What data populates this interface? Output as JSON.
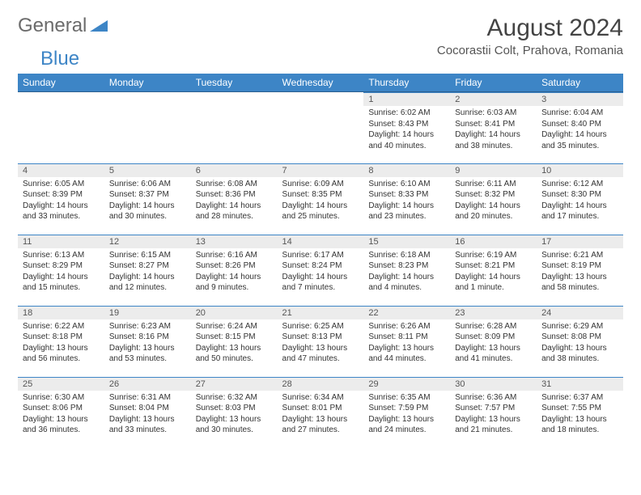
{
  "logo": {
    "part1": "General",
    "part2": "Blue"
  },
  "title": "August 2024",
  "subtitle": "Cocorastii Colt, Prahova, Romania",
  "colors": {
    "accent": "#3d85c6",
    "dayband": "#ececec",
    "text": "#333333"
  },
  "weekdays": [
    "Sunday",
    "Monday",
    "Tuesday",
    "Wednesday",
    "Thursday",
    "Friday",
    "Saturday"
  ],
  "first_weekday_index": 4,
  "days": [
    {
      "n": 1,
      "sr": "6:02 AM",
      "ss": "8:43 PM",
      "dl": "14 hours and 40 minutes."
    },
    {
      "n": 2,
      "sr": "6:03 AM",
      "ss": "8:41 PM",
      "dl": "14 hours and 38 minutes."
    },
    {
      "n": 3,
      "sr": "6:04 AM",
      "ss": "8:40 PM",
      "dl": "14 hours and 35 minutes."
    },
    {
      "n": 4,
      "sr": "6:05 AM",
      "ss": "8:39 PM",
      "dl": "14 hours and 33 minutes."
    },
    {
      "n": 5,
      "sr": "6:06 AM",
      "ss": "8:37 PM",
      "dl": "14 hours and 30 minutes."
    },
    {
      "n": 6,
      "sr": "6:08 AM",
      "ss": "8:36 PM",
      "dl": "14 hours and 28 minutes."
    },
    {
      "n": 7,
      "sr": "6:09 AM",
      "ss": "8:35 PM",
      "dl": "14 hours and 25 minutes."
    },
    {
      "n": 8,
      "sr": "6:10 AM",
      "ss": "8:33 PM",
      "dl": "14 hours and 23 minutes."
    },
    {
      "n": 9,
      "sr": "6:11 AM",
      "ss": "8:32 PM",
      "dl": "14 hours and 20 minutes."
    },
    {
      "n": 10,
      "sr": "6:12 AM",
      "ss": "8:30 PM",
      "dl": "14 hours and 17 minutes."
    },
    {
      "n": 11,
      "sr": "6:13 AM",
      "ss": "8:29 PM",
      "dl": "14 hours and 15 minutes."
    },
    {
      "n": 12,
      "sr": "6:15 AM",
      "ss": "8:27 PM",
      "dl": "14 hours and 12 minutes."
    },
    {
      "n": 13,
      "sr": "6:16 AM",
      "ss": "8:26 PM",
      "dl": "14 hours and 9 minutes."
    },
    {
      "n": 14,
      "sr": "6:17 AM",
      "ss": "8:24 PM",
      "dl": "14 hours and 7 minutes."
    },
    {
      "n": 15,
      "sr": "6:18 AM",
      "ss": "8:23 PM",
      "dl": "14 hours and 4 minutes."
    },
    {
      "n": 16,
      "sr": "6:19 AM",
      "ss": "8:21 PM",
      "dl": "14 hours and 1 minute."
    },
    {
      "n": 17,
      "sr": "6:21 AM",
      "ss": "8:19 PM",
      "dl": "13 hours and 58 minutes."
    },
    {
      "n": 18,
      "sr": "6:22 AM",
      "ss": "8:18 PM",
      "dl": "13 hours and 56 minutes."
    },
    {
      "n": 19,
      "sr": "6:23 AM",
      "ss": "8:16 PM",
      "dl": "13 hours and 53 minutes."
    },
    {
      "n": 20,
      "sr": "6:24 AM",
      "ss": "8:15 PM",
      "dl": "13 hours and 50 minutes."
    },
    {
      "n": 21,
      "sr": "6:25 AM",
      "ss": "8:13 PM",
      "dl": "13 hours and 47 minutes."
    },
    {
      "n": 22,
      "sr": "6:26 AM",
      "ss": "8:11 PM",
      "dl": "13 hours and 44 minutes."
    },
    {
      "n": 23,
      "sr": "6:28 AM",
      "ss": "8:09 PM",
      "dl": "13 hours and 41 minutes."
    },
    {
      "n": 24,
      "sr": "6:29 AM",
      "ss": "8:08 PM",
      "dl": "13 hours and 38 minutes."
    },
    {
      "n": 25,
      "sr": "6:30 AM",
      "ss": "8:06 PM",
      "dl": "13 hours and 36 minutes."
    },
    {
      "n": 26,
      "sr": "6:31 AM",
      "ss": "8:04 PM",
      "dl": "13 hours and 33 minutes."
    },
    {
      "n": 27,
      "sr": "6:32 AM",
      "ss": "8:03 PM",
      "dl": "13 hours and 30 minutes."
    },
    {
      "n": 28,
      "sr": "6:34 AM",
      "ss": "8:01 PM",
      "dl": "13 hours and 27 minutes."
    },
    {
      "n": 29,
      "sr": "6:35 AM",
      "ss": "7:59 PM",
      "dl": "13 hours and 24 minutes."
    },
    {
      "n": 30,
      "sr": "6:36 AM",
      "ss": "7:57 PM",
      "dl": "13 hours and 21 minutes."
    },
    {
      "n": 31,
      "sr": "6:37 AM",
      "ss": "7:55 PM",
      "dl": "13 hours and 18 minutes."
    }
  ],
  "labels": {
    "sunrise": "Sunrise:",
    "sunset": "Sunset:",
    "daylight": "Daylight:"
  }
}
